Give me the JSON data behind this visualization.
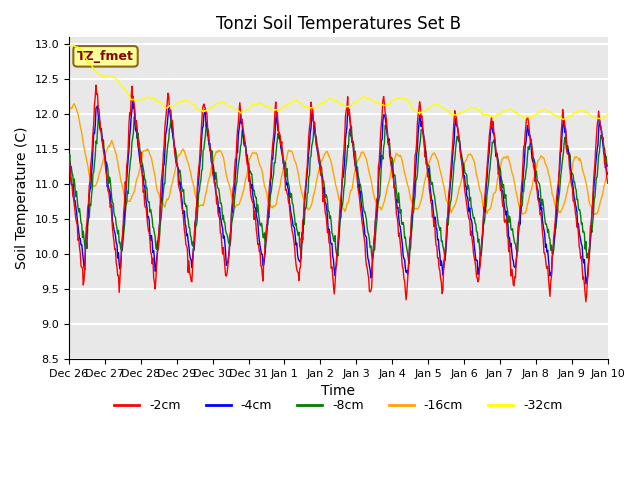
{
  "title": "Tonzi Soil Temperatures Set B",
  "xlabel": "Time",
  "ylabel": "Soil Temperature (C)",
  "ylim": [
    8.5,
    13.1
  ],
  "xlim": [
    0,
    15
  ],
  "annotation_text": "TZ_fmet",
  "annotation_facecolor": "#ffff99",
  "annotation_edgecolor": "#8b6914",
  "annotation_textcolor": "#8b0000",
  "legend_labels": [
    "-2cm",
    "-4cm",
    "-8cm",
    "-16cm",
    "-32cm"
  ],
  "line_colors": [
    "red",
    "blue",
    "green",
    "orange",
    "yellow"
  ],
  "bg_color": "#e8e8e8",
  "fig_bg_color": "white",
  "grid_color": "white",
  "yticks": [
    8.5,
    9.0,
    9.5,
    10.0,
    10.5,
    11.0,
    11.5,
    12.0,
    12.5,
    13.0
  ],
  "xtick_labels": [
    "Dec 26",
    "Dec 27",
    "Dec 28",
    "Dec 29",
    "Dec 30",
    "Dec 31",
    "Jan 1",
    "Jan 2",
    "Jan 3",
    "Jan 4",
    "Jan 5",
    "Jan 6",
    "Jan 7",
    "Jan 8",
    "Jan 9",
    "Jan 10"
  ],
  "figsize": [
    6.4,
    4.8
  ],
  "dpi": 100,
  "title_fontsize": 12,
  "axis_label_fontsize": 10,
  "tick_fontsize": 8,
  "legend_fontsize": 9,
  "annotation_fontsize": 9,
  "n_per_day": 48,
  "n_days": 15
}
